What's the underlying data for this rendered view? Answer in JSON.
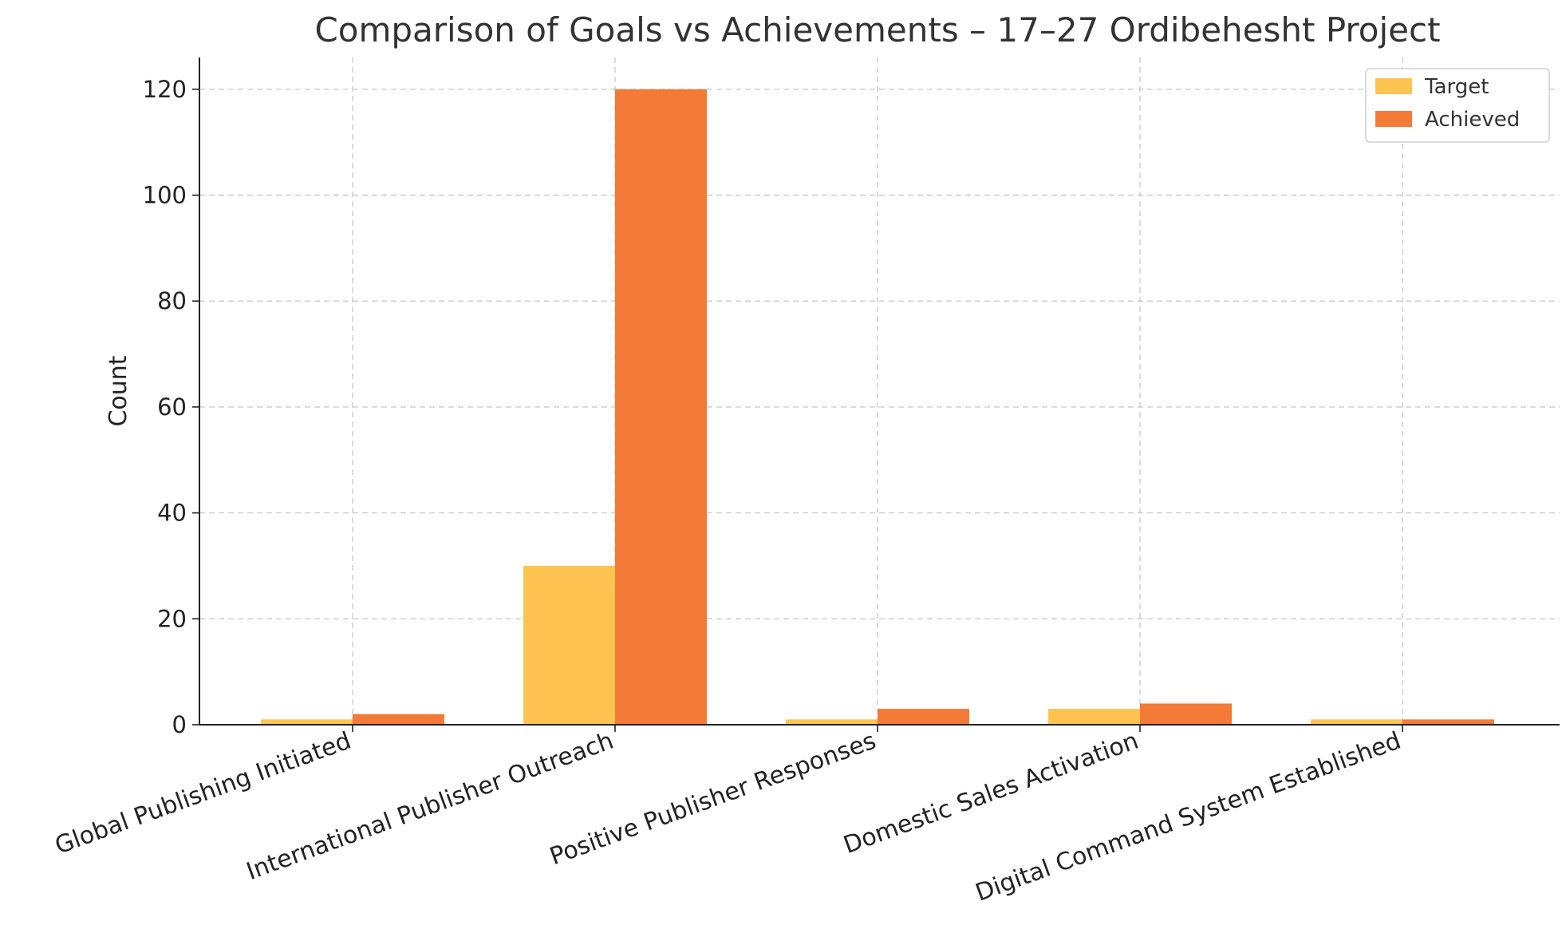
{
  "chart_data": {
    "type": "bar",
    "title": "Comparison of Goals vs Achievements – 17–27 Ordibehesht Project",
    "xlabel": "",
    "ylabel": "Count",
    "categories": [
      "Global Publishing Initiated",
      "International Publisher Outreach",
      "Positive Publisher Responses",
      "Domestic Sales Activation",
      "Digital Command System Established"
    ],
    "series": [
      {
        "name": "Target",
        "color": "#FEC44F",
        "values": [
          1,
          30,
          1,
          3,
          1
        ]
      },
      {
        "name": "Achieved",
        "color": "#F47A38",
        "values": [
          2,
          120,
          3,
          4,
          1
        ]
      }
    ],
    "ylim": [
      0,
      126
    ],
    "yticks": [
      0,
      20,
      40,
      60,
      80,
      100,
      120
    ],
    "grid": true,
    "legend_position": "top-right"
  }
}
